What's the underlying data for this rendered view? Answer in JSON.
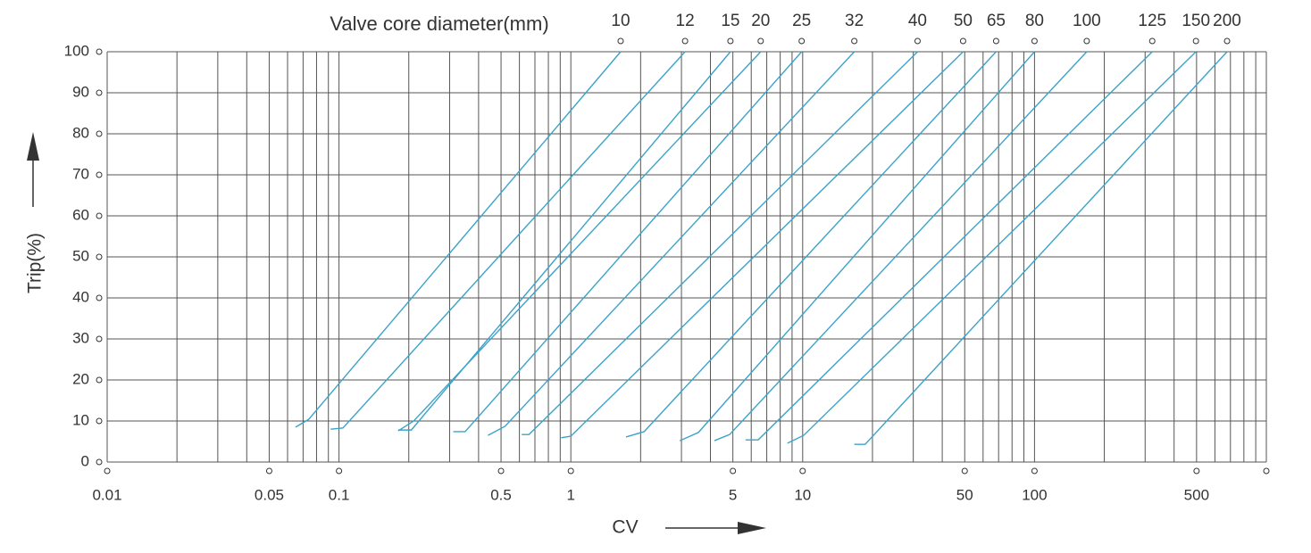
{
  "chart_data": {
    "type": "line",
    "title": "Valve core diameter(mm)",
    "x_label": "CV",
    "y_label": "Trip(%)",
    "log_x": true,
    "grid": true,
    "xlim": [
      0.01,
      1000
    ],
    "ylim": [
      0,
      100
    ],
    "xticks": [
      0.01,
      0.05,
      0.1,
      0.5,
      1,
      5,
      10,
      50,
      100,
      500
    ],
    "x_minor_grid": [
      0.02,
      0.03,
      0.04,
      0.06,
      0.07,
      0.08,
      0.09,
      0.2,
      0.3,
      0.4,
      0.6,
      0.7,
      0.8,
      0.9,
      2,
      3,
      4,
      6,
      7,
      8,
      9,
      20,
      30,
      40,
      60,
      70,
      80,
      90,
      200,
      300,
      400,
      600,
      700,
      800,
      900,
      1000
    ],
    "yticks": [
      0,
      10,
      20,
      30,
      40,
      50,
      60,
      70,
      80,
      90,
      100
    ],
    "series": [
      {
        "name": "10",
        "color": "#3ba3c9",
        "x": [
          0.065,
          0.074,
          1.64
        ],
        "values": [
          8.5,
          10.4,
          100
        ]
      },
      {
        "name": "12",
        "color": "#3ba3c9",
        "x": [
          0.092,
          0.104,
          3.11
        ],
        "values": [
          8,
          8.3,
          100
        ]
      },
      {
        "name": "15",
        "color": "#3ba3c9",
        "x": [
          0.18,
          0.205,
          4.88
        ],
        "values": [
          7.8,
          7.8,
          100
        ]
      },
      {
        "name": "20",
        "color": "#3ba3c9",
        "x": [
          0.18,
          0.21,
          6.59
        ],
        "values": [
          7.6,
          10,
          100
        ]
      },
      {
        "name": "25",
        "color": "#3ba3c9",
        "x": [
          0.311,
          0.35,
          9.9
        ],
        "values": [
          7.4,
          7.4,
          100
        ]
      },
      {
        "name": "32",
        "color": "#3ba3c9",
        "x": [
          0.439,
          0.52,
          16.7
        ],
        "values": [
          6.5,
          8.7,
          100
        ]
      },
      {
        "name": "40",
        "color": "#3ba3c9",
        "x": [
          0.614,
          0.66,
          31.3
        ],
        "values": [
          6.7,
          6.7,
          100
        ]
      },
      {
        "name": "50",
        "color": "#3ba3c9",
        "x": [
          0.908,
          1.0,
          49.2
        ],
        "values": [
          5.9,
          6.3,
          100
        ]
      },
      {
        "name": "65",
        "color": "#3ba3c9",
        "x": [
          1.73,
          2.07,
          68.3
        ],
        "values": [
          6.1,
          7.4,
          100
        ]
      },
      {
        "name": "80",
        "color": "#3ba3c9",
        "x": [
          2.95,
          3.55,
          100
        ],
        "values": [
          5.2,
          7.2,
          100
        ]
      },
      {
        "name": "100",
        "color": "#3ba3c9",
        "x": [
          4.16,
          4.84,
          168
        ],
        "values": [
          5.2,
          6.7,
          100
        ]
      },
      {
        "name": "125",
        "color": "#3ba3c9",
        "x": [
          5.67,
          6.43,
          322
        ],
        "values": [
          5.4,
          5.4,
          100
        ]
      },
      {
        "name": "150",
        "color": "#3ba3c9",
        "x": [
          8.6,
          10.1,
          497
        ],
        "values": [
          4.6,
          6.5,
          100
        ]
      },
      {
        "name": "200",
        "color": "#3ba3c9",
        "x": [
          16.7,
          18.6,
          677
        ],
        "values": [
          4.3,
          4.3,
          100
        ]
      }
    ]
  }
}
